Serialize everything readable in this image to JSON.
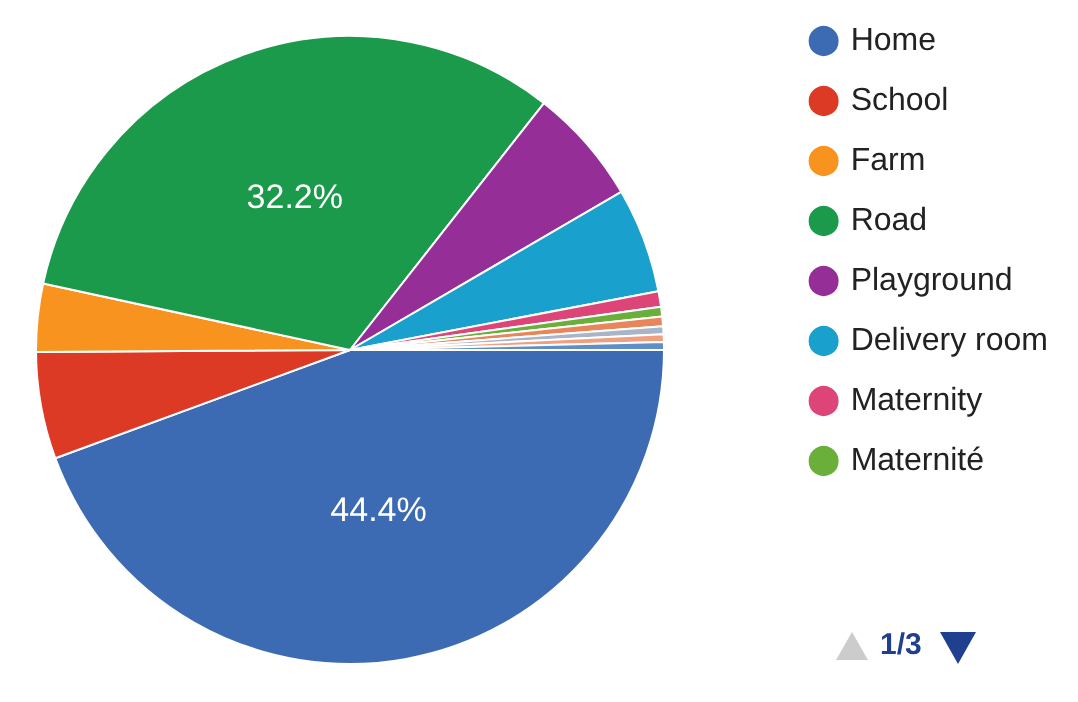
{
  "chart_data": {
    "type": "pie",
    "categories": [
      "Home",
      "School",
      "Farm",
      "Road",
      "Playground",
      "Delivery room",
      "Maternity",
      "Maternité",
      null,
      null,
      null,
      null
    ],
    "values": [
      44.4,
      5.5,
      3.5,
      32.2,
      6.0,
      5.4,
      0.8,
      0.5,
      0.5,
      0.4,
      0.4,
      0.4
    ],
    "colors": [
      "#3d6bb3",
      "#dc3a24",
      "#f7931e",
      "#1b9a4b",
      "#952e96",
      "#1aa0cc",
      "#dd4477",
      "#6aaf3a",
      "#e8855a",
      "#a8b4c8",
      "#f0a080",
      "#5f8fc6"
    ],
    "value_labels": [
      "44.4%",
      null,
      null,
      "32.2%",
      null,
      null,
      null,
      null,
      null,
      null,
      null,
      null
    ],
    "legend": "right",
    "annotations": [
      "1/3"
    ]
  }
}
